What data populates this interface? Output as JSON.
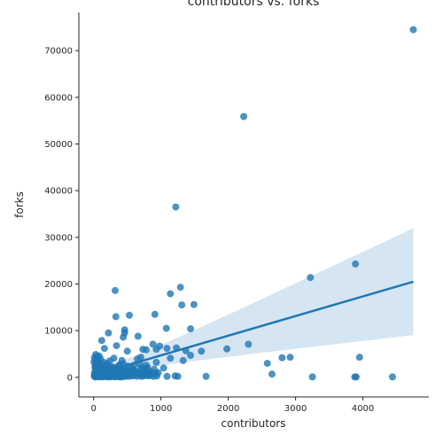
{
  "chart_data": {
    "type": "scatter",
    "title": "contributors vs. forks",
    "xlabel": "contributors",
    "ylabel": "forks",
    "xlim": [
      -220,
      4980
    ],
    "ylim": [
      -4200,
      78200
    ],
    "xticks": [
      0,
      1000,
      2000,
      3000,
      4000
    ],
    "yticks": [
      0,
      10000,
      20000,
      30000,
      40000,
      50000,
      60000,
      70000
    ],
    "grid": false,
    "colors": {
      "point": "#1f77b4",
      "line": "#1f77b4",
      "band": "#cfe0f0",
      "axis": "#262626"
    },
    "regression": {
      "x": [
        0,
        4750
      ],
      "y": [
        500,
        20500
      ],
      "ci_upper": [
        2200,
        32700
      ],
      "ci_lower": [
        -800,
        9800
      ],
      "x_center": 300
    },
    "points": [
      [
        4750,
        74500
      ],
      [
        2230,
        55900
      ],
      [
        1220,
        36500
      ],
      [
        3890,
        24300
      ],
      [
        3220,
        21400
      ],
      [
        1290,
        19300
      ],
      [
        320,
        18600
      ],
      [
        1140,
        17900
      ],
      [
        1310,
        15500
      ],
      [
        1490,
        15600
      ],
      [
        910,
        13500
      ],
      [
        530,
        13300
      ],
      [
        330,
        13000
      ],
      [
        1080,
        10500
      ],
      [
        1440,
        10400
      ],
      [
        460,
        10200
      ],
      [
        460,
        9500
      ],
      [
        220,
        9500
      ],
      [
        660,
        8800
      ],
      [
        440,
        8600
      ],
      [
        120,
        7900
      ],
      [
        880,
        7100
      ],
      [
        980,
        6700
      ],
      [
        340,
        6800
      ],
      [
        2300,
        7100
      ],
      [
        1090,
        6200
      ],
      [
        1230,
        6300
      ],
      [
        730,
        6000
      ],
      [
        780,
        5900
      ],
      [
        930,
        6000
      ],
      [
        1980,
        6100
      ],
      [
        1370,
        5700
      ],
      [
        160,
        6200
      ],
      [
        1600,
        5600
      ],
      [
        500,
        5600
      ],
      [
        1440,
        4700
      ],
      [
        1140,
        4100
      ],
      [
        2800,
        4200
      ],
      [
        2920,
        4300
      ],
      [
        3950,
        4300
      ],
      [
        1330,
        3600
      ],
      [
        930,
        3200
      ],
      [
        2580,
        3000
      ],
      [
        1040,
        2000
      ],
      [
        780,
        2600
      ],
      [
        700,
        1900
      ],
      [
        1210,
        300
      ],
      [
        1250,
        200
      ],
      [
        1670,
        200
      ],
      [
        2650,
        700
      ],
      [
        3250,
        100
      ],
      [
        3880,
        100
      ],
      [
        3900,
        100
      ],
      [
        4440,
        100
      ],
      [
        1090,
        200
      ],
      [
        30,
        4900
      ],
      [
        40,
        3800
      ],
      [
        60,
        3000
      ],
      [
        80,
        4600
      ],
      [
        100,
        2500
      ],
      [
        150,
        3200
      ],
      [
        180,
        1800
      ],
      [
        200,
        2900
      ],
      [
        240,
        3500
      ],
      [
        260,
        1200
      ],
      [
        280,
        2200
      ],
      [
        300,
        4100
      ],
      [
        350,
        1600
      ],
      [
        380,
        2700
      ],
      [
        400,
        900
      ],
      [
        420,
        3600
      ],
      [
        450,
        2000
      ],
      [
        480,
        1300
      ],
      [
        510,
        2400
      ],
      [
        540,
        700
      ],
      [
        560,
        1800
      ],
      [
        600,
        2600
      ],
      [
        620,
        1100
      ],
      [
        650,
        3900
      ],
      [
        680,
        500
      ],
      [
        700,
        4300
      ],
      [
        720,
        1500
      ],
      [
        760,
        800
      ],
      [
        800,
        2100
      ],
      [
        820,
        300
      ],
      [
        850,
        1200
      ],
      [
        870,
        600
      ],
      [
        900,
        1700
      ],
      [
        940,
        300
      ],
      [
        960,
        1000
      ],
      [
        20,
        2100
      ],
      [
        50,
        1500
      ],
      [
        70,
        800
      ],
      [
        90,
        1900
      ],
      [
        110,
        400
      ],
      [
        130,
        1100
      ],
      [
        140,
        2700
      ],
      [
        170,
        600
      ],
      [
        190,
        1400
      ],
      [
        210,
        2300
      ],
      [
        230,
        900
      ],
      [
        250,
        1700
      ],
      [
        270,
        300
      ],
      [
        290,
        1000
      ],
      [
        310,
        2000
      ],
      [
        330,
        500
      ],
      [
        360,
        1300
      ],
      [
        370,
        2200
      ],
      [
        390,
        400
      ],
      [
        410,
        1600
      ],
      [
        430,
        800
      ],
      [
        440,
        2900
      ],
      [
        460,
        300
      ],
      [
        490,
        1500
      ],
      [
        520,
        600
      ],
      [
        550,
        1000
      ],
      [
        580,
        400
      ],
      [
        610,
        1400
      ],
      [
        640,
        200
      ],
      [
        670,
        900
      ],
      [
        690,
        2800
      ],
      [
        740,
        300
      ],
      [
        770,
        1000
      ],
      [
        790,
        400
      ],
      [
        810,
        1300
      ],
      [
        10,
        200
      ],
      [
        10,
        600
      ],
      [
        15,
        1000
      ],
      [
        20,
        300
      ],
      [
        25,
        1300
      ],
      [
        30,
        100
      ],
      [
        35,
        700
      ],
      [
        40,
        1700
      ],
      [
        45,
        200
      ],
      [
        55,
        500
      ],
      [
        60,
        1200
      ],
      [
        65,
        150
      ],
      [
        75,
        400
      ],
      [
        85,
        900
      ],
      [
        95,
        100
      ],
      [
        105,
        300
      ],
      [
        115,
        700
      ],
      [
        125,
        200
      ],
      [
        135,
        500
      ],
      [
        145,
        100
      ],
      [
        155,
        900
      ],
      [
        165,
        300
      ],
      [
        175,
        1500
      ],
      [
        185,
        200
      ],
      [
        195,
        700
      ],
      [
        205,
        100
      ],
      [
        215,
        500
      ],
      [
        225,
        1200
      ],
      [
        235,
        300
      ],
      [
        245,
        100
      ],
      [
        255,
        600
      ],
      [
        265,
        2000
      ],
      [
        275,
        150
      ],
      [
        285,
        400
      ],
      [
        295,
        1700
      ],
      [
        305,
        200
      ],
      [
        315,
        800
      ],
      [
        325,
        100
      ],
      [
        345,
        300
      ],
      [
        355,
        600
      ],
      [
        365,
        200
      ],
      [
        375,
        1100
      ],
      [
        385,
        100
      ],
      [
        395,
        400
      ],
      [
        405,
        200
      ],
      [
        415,
        700
      ],
      [
        425,
        100
      ],
      [
        445,
        400
      ],
      [
        470,
        200
      ],
      [
        495,
        900
      ],
      [
        525,
        200
      ],
      [
        570,
        300
      ],
      [
        590,
        1700
      ],
      [
        630,
        600
      ],
      [
        710,
        200
      ],
      [
        750,
        1900
      ],
      [
        830,
        800
      ],
      [
        890,
        200
      ],
      [
        920,
        900
      ],
      [
        5,
        3300
      ],
      [
        12,
        4200
      ],
      [
        22,
        2600
      ],
      [
        33,
        3500
      ],
      [
        48,
        4400
      ],
      [
        58,
        2300
      ],
      [
        68,
        3700
      ],
      [
        78,
        2000
      ],
      [
        88,
        3100
      ],
      [
        98,
        4000
      ],
      [
        108,
        2600
      ]
    ]
  }
}
